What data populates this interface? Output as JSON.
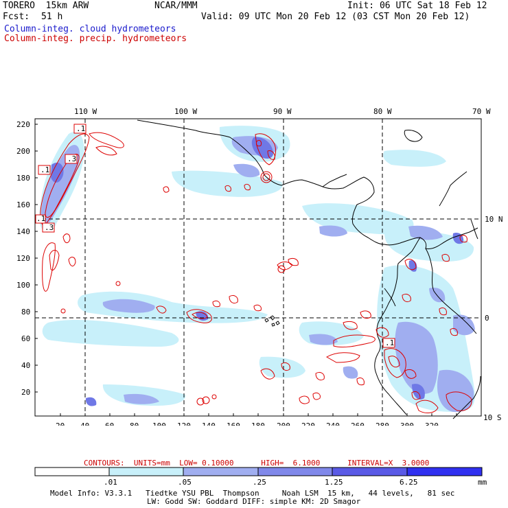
{
  "header": {
    "model": "TORERO  15km ARW",
    "center": "NCAR/MMM",
    "init": "Init: 06 UTC Sat 18 Feb 12",
    "fcst_label": "Fcst:",
    "fcst_value": "51 h",
    "valid": "Valid: 09 UTC Mon 20 Feb 12 (03 CST Mon 20 Feb 12)",
    "legend_cloud": "Column-integ. cloud hydrometeors",
    "legend_precip": "Column-integ. precip. hydrometeors"
  },
  "map": {
    "lon_labels": [
      "110 W",
      "100 W",
      "90 W",
      "80 W",
      "70 W"
    ],
    "lat_labels": [
      "10 N",
      "0",
      "10 S"
    ],
    "x_ticks": [
      "20",
      "40",
      "60",
      "80",
      "100",
      "120",
      "140",
      "160",
      "180",
      "200",
      "220",
      "240",
      "260",
      "280",
      "300",
      "320"
    ],
    "y_ticks": [
      "20",
      "40",
      "60",
      "80",
      "100",
      "120",
      "140",
      "160",
      "180",
      "200",
      "220"
    ],
    "contour_labels": [
      ".1",
      ".1",
      ".3",
      ".1",
      ".3",
      ".1"
    ],
    "colors": {
      "cloud_light": "#c8f0fa",
      "cloud_mid": "#a0aef0",
      "cloud_dark": "#6f78e6",
      "precip_contour": "#dd0000",
      "coastline": "#000000"
    }
  },
  "contour_info": {
    "text": "CONTOURS:  UNITS=mm  LOW= 0.10000      HIGH=  6.1000      INTERVAL=X  3.0000"
  },
  "colorbar": {
    "labels": [
      ".01",
      ".05",
      ".25",
      "1.25",
      "6.25"
    ],
    "unit": "mm",
    "colors": [
      "#ffffff",
      "#c8f0fa",
      "#a0aef0",
      "#8088ea",
      "#5a5ae6",
      "#3030f0"
    ]
  },
  "footer": {
    "line1": "Model Info: V3.3.1   Tiedtke YSU PBL  Thompson     Noah LSM  15 km,   44 levels,   81 sec",
    "line2": "LW: Godd SW: Goddard DIFF: simple KM: 2D Smagor"
  }
}
